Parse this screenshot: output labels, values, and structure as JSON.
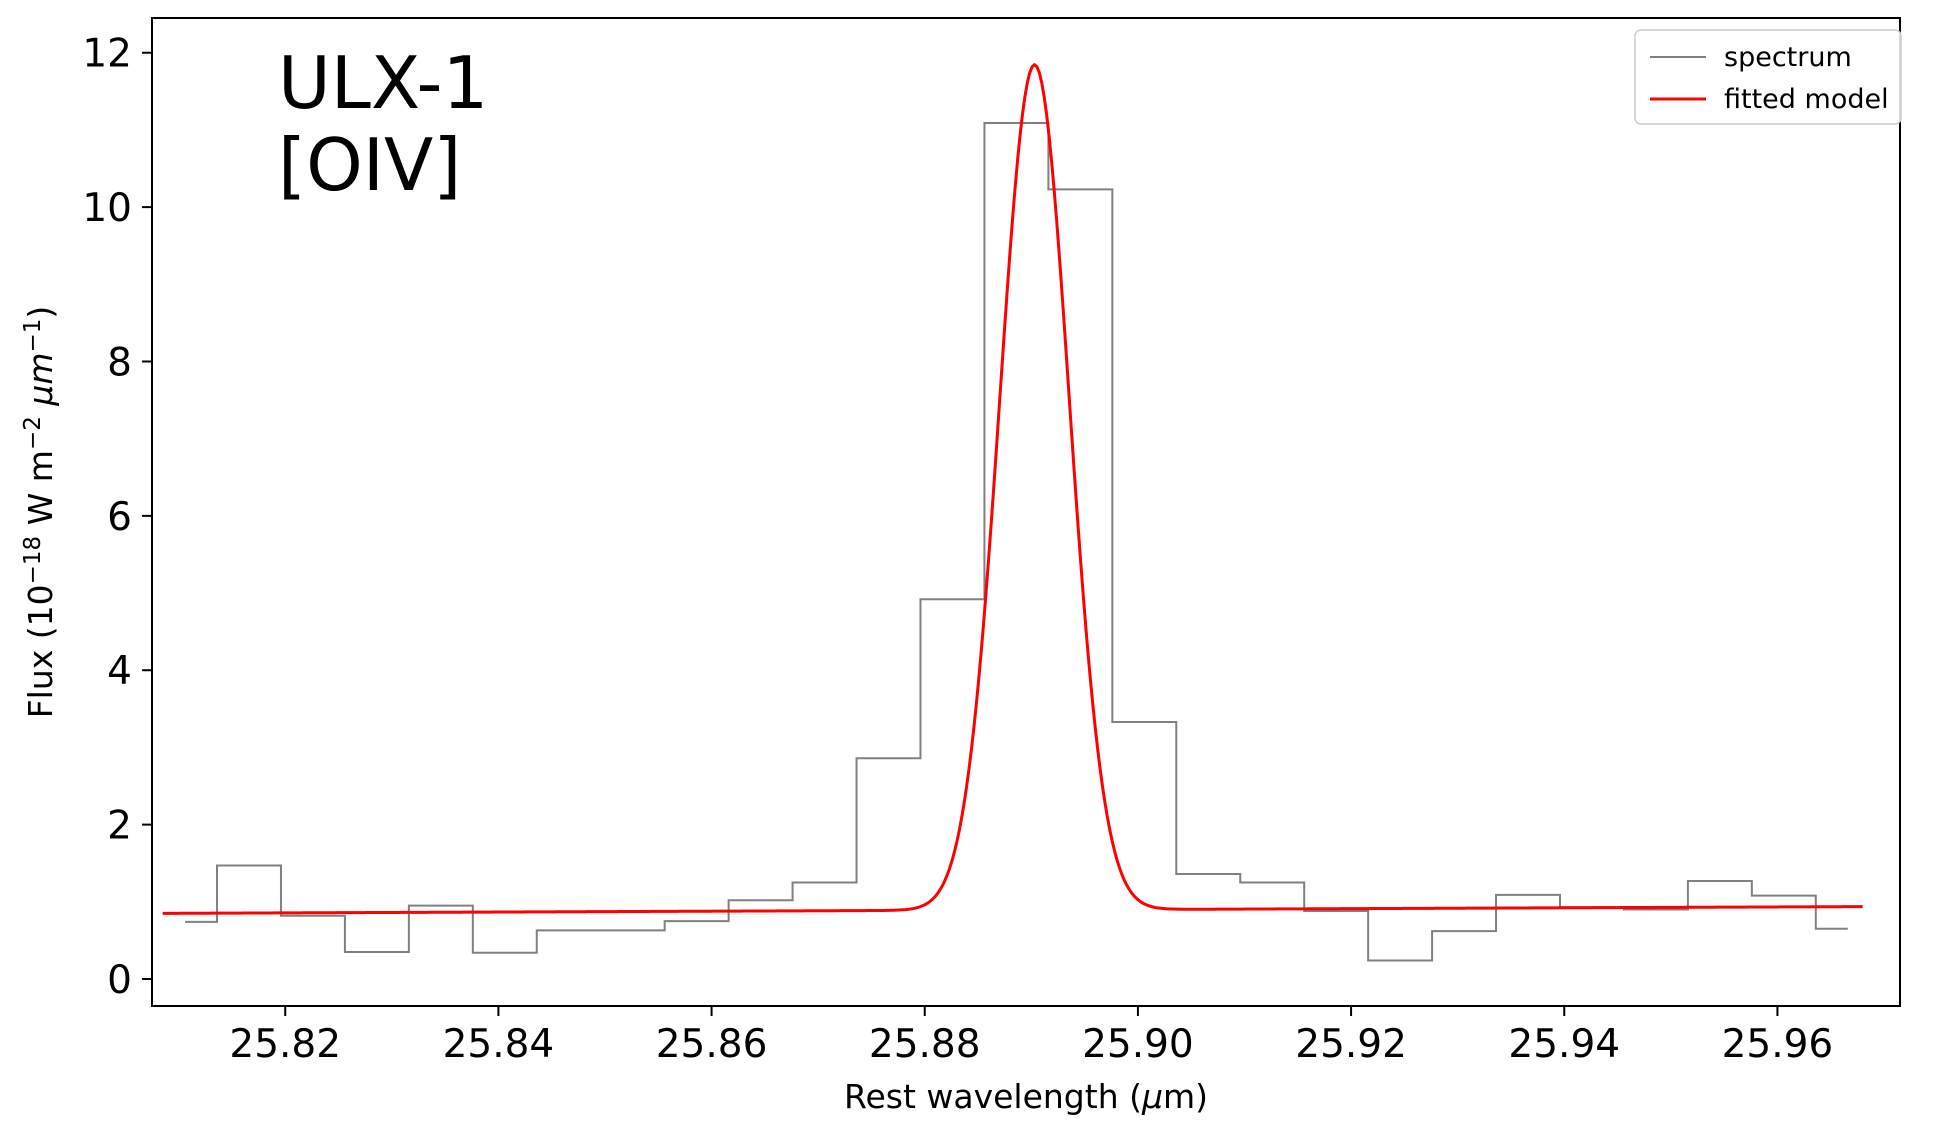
{
  "chart_data": {
    "type": "line",
    "annotation": [
      "ULX-1",
      "[OIV]"
    ],
    "xlabel": {
      "prefix": "Rest wavelength (",
      "symbol": "μ",
      "suffix": "m)"
    },
    "ylabel": {
      "a": "Flux (10",
      "a_sup": "−18",
      "b": " W m",
      "b_sup": "−2",
      "c": " ",
      "unit": "μm",
      "c_sup": "−1",
      "d": ")"
    },
    "xlim": [
      25.8075,
      25.9715
    ],
    "ylim": [
      -0.35,
      12.45
    ],
    "xticks": [
      25.82,
      25.84,
      25.86,
      25.88,
      25.9,
      25.92,
      25.94,
      25.96
    ],
    "xtick_labels": [
      "25.82",
      "25.84",
      "25.86",
      "25.88",
      "25.90",
      "25.92",
      "25.94",
      "25.96"
    ],
    "yticks": [
      0,
      2,
      4,
      6,
      8,
      10,
      12
    ],
    "ytick_labels": [
      "0",
      "2",
      "4",
      "6",
      "8",
      "10",
      "12"
    ],
    "legend_position": "top-right",
    "grid": false,
    "series": [
      {
        "name": "spectrum",
        "kind": "step",
        "color": "#808080",
        "x_edges": [
          25.8106,
          25.8136,
          25.8196,
          25.8256,
          25.8316,
          25.8376,
          25.8436,
          25.8496,
          25.8556,
          25.8616,
          25.8676,
          25.8736,
          25.8796,
          25.8856,
          25.8916,
          25.8976,
          25.9036,
          25.9096,
          25.9156,
          25.9216,
          25.9276,
          25.9336,
          25.9396,
          25.9456,
          25.9516,
          25.9576,
          25.9636,
          25.9666
        ],
        "values": [
          0.74,
          1.47,
          0.82,
          0.35,
          0.95,
          0.34,
          0.63,
          0.63,
          0.75,
          1.02,
          1.25,
          2.86,
          4.92,
          11.09,
          10.23,
          3.33,
          1.36,
          1.25,
          0.88,
          0.24,
          0.62,
          1.09,
          0.93,
          0.9,
          1.27,
          1.08,
          0.65
        ]
      },
      {
        "name": "fitted model",
        "kind": "gaussian",
        "color": "#ff0000",
        "x_range": [
          25.8085,
          25.968
        ],
        "baseline_at_start": 0.85,
        "baseline_slope_per_um": 0.55,
        "peak_center": 25.8903,
        "peak_amplitude": 10.95,
        "peak_sigma": 0.00325
      }
    ]
  }
}
